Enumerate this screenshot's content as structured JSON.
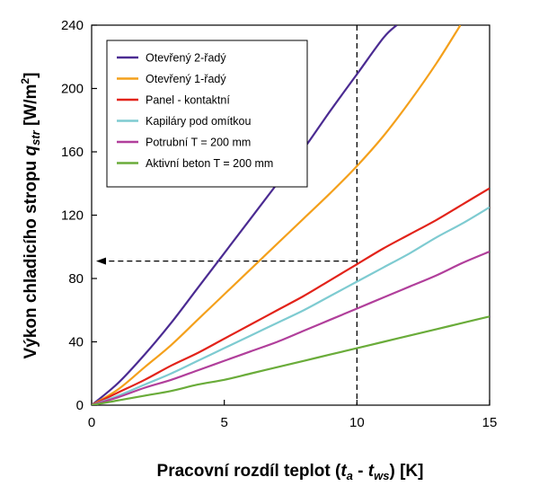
{
  "chart_data": {
    "type": "line",
    "xlabel_parts": {
      "prefix": "Pracovní rozdíl teplot (",
      "t1": "t",
      "t1_sub": "a",
      "minus": " - ",
      "t2": "t",
      "t2_sub": "ws",
      "suffix": ") [K]"
    },
    "ylabel_parts": {
      "prefix": "Výkon chladicího stropu ",
      "q": "q",
      "q_sub": "str",
      "unit_pre": " [W/m",
      "unit_sup": "2",
      "unit_post": "]"
    },
    "xlim": [
      0,
      15
    ],
    "ylim": [
      0,
      240
    ],
    "x_ticks": [
      "0",
      "5",
      "10",
      "15"
    ],
    "y_ticks": [
      "0",
      "40",
      "80",
      "120",
      "160",
      "200",
      "240"
    ],
    "x_tick_values": [
      0,
      5,
      10,
      15
    ],
    "y_tick_values": [
      0,
      40,
      80,
      120,
      160,
      200,
      240
    ],
    "grid": false,
    "legend_position": "top-left",
    "series": [
      {
        "name": "Otevřený 2-řadý",
        "color": "#4b2b92",
        "x": [
          0,
          1,
          2,
          3,
          4,
          5,
          6,
          7,
          8,
          9,
          10,
          11,
          11.5
        ],
        "y": [
          0,
          14,
          32,
          52,
          74,
          96,
          118,
          140,
          162,
          186,
          209,
          232,
          240
        ]
      },
      {
        "name": "Otevřený 1-řadý",
        "color": "#f4a01b",
        "x": [
          0,
          1,
          2,
          3,
          4,
          5,
          6,
          7,
          8,
          9,
          10,
          11,
          12,
          13,
          13.9
        ],
        "y": [
          0,
          10,
          24,
          38,
          54,
          70,
          86,
          102,
          118,
          134,
          151,
          170,
          192,
          216,
          240
        ]
      },
      {
        "name": "Panel - kontaktní",
        "color": "#e2231a",
        "x": [
          0,
          1,
          2,
          3,
          4,
          5,
          6,
          7,
          8,
          9,
          10,
          11,
          12,
          13,
          14,
          15
        ],
        "y": [
          0,
          8,
          16,
          25,
          33,
          42,
          51,
          60,
          69,
          79,
          89,
          99,
          108,
          117,
          127,
          137
        ]
      },
      {
        "name": "Kapiláry pod omítkou",
        "color": "#7ecbd1",
        "x": [
          0,
          1,
          2,
          3,
          4,
          5,
          6,
          7,
          8,
          9,
          10,
          11,
          12,
          13,
          14,
          15
        ],
        "y": [
          0,
          6,
          13,
          20,
          28,
          36,
          44,
          52,
          60,
          69,
          78,
          87,
          96,
          106,
          115,
          125
        ]
      },
      {
        "name": "Potrubní T = 200 mm",
        "color": "#b13f9b",
        "x": [
          0,
          1,
          2,
          3,
          4,
          5,
          6,
          7,
          8,
          9,
          10,
          11,
          12,
          13,
          14,
          15
        ],
        "y": [
          0,
          5,
          11,
          16,
          22,
          28,
          34,
          40,
          47,
          54,
          61,
          68,
          75,
          82,
          90,
          97
        ]
      },
      {
        "name": "Aktivní beton T = 200 mm",
        "color": "#6aac3a",
        "x": [
          0,
          1,
          2,
          3,
          4,
          5,
          6,
          7,
          8,
          9,
          10,
          11,
          12,
          13,
          14,
          15
        ],
        "y": [
          0,
          3,
          6,
          9,
          13,
          16,
          20,
          24,
          28,
          32,
          36,
          40,
          44,
          48,
          52,
          56
        ]
      }
    ],
    "annotation": {
      "x": 10,
      "y": 91,
      "arrow": "to-y-axis",
      "style": "dashed"
    }
  }
}
